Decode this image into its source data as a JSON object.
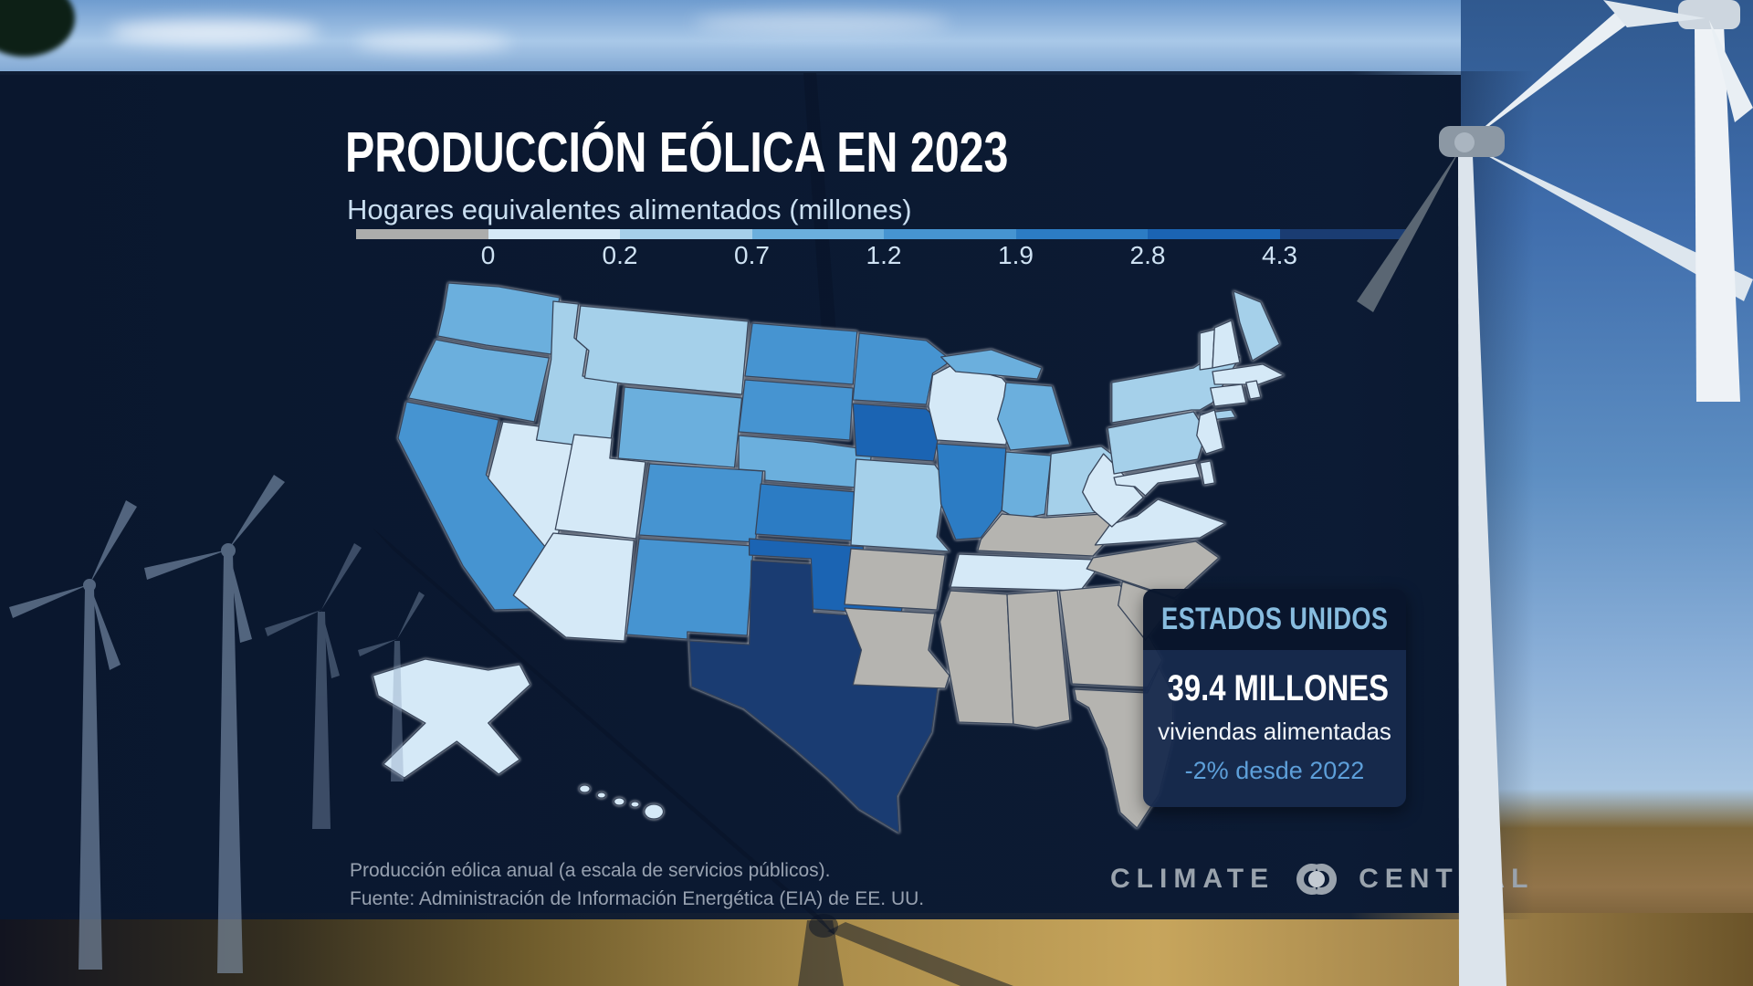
{
  "header": {
    "title": "PRODUCCIÓN EÓLICA EN 2023",
    "subtitle": "Hogares equivalentes alimentados (millones)"
  },
  "chart_data": {
    "type": "choropleth_map",
    "title": "PRODUCCIÓN EÓLICA EN 2023",
    "subtitle": "Hogares equivalentes alimentados (millones)",
    "unit": "millones de hogares equivalentes alimentados",
    "legend": {
      "tick_labels": [
        "0",
        "0.2",
        "0.7",
        "1.2",
        "1.9",
        "2.8",
        "4.3"
      ],
      "segment_colors": [
        "#acadac",
        "#d5e9f7",
        "#a5d0ea",
        "#6bafdd",
        "#4694d1",
        "#2c7cc4",
        "#1b64b3",
        "#1a3c72"
      ],
      "position": "top"
    },
    "no_data_color": "#b5b4b0",
    "state_fills": {
      "WA": "#6bafdd",
      "OR": "#6bafdd",
      "CA": "#4694d1",
      "NV": "#d5e9f7",
      "ID": "#a5d0ea",
      "MT": "#a5d0ea",
      "WY": "#6bafdd",
      "UT": "#d5e9f7",
      "CO": "#4694d1",
      "AZ": "#d5e9f7",
      "NM": "#4694d1",
      "ND": "#4694d1",
      "SD": "#4694d1",
      "NE": "#6bafdd",
      "KS": "#2c7cc4",
      "OK": "#1b64b3",
      "TX": "#1a3c72",
      "MN": "#4694d1",
      "IA": "#1b64b3",
      "MO": "#a5d0ea",
      "AR": "#b5b4b0",
      "LA": "#b5b4b0",
      "WI": "#d5e9f7",
      "IL": "#2c7cc4",
      "MI": "#6bafdd",
      "IN": "#6bafdd",
      "OH": "#a5d0ea",
      "KY": "#b5b4b0",
      "TN": "#d5e9f7",
      "MS": "#b5b4b0",
      "AL": "#b5b4b0",
      "GA": "#b5b4b0",
      "FL": "#b5b4b0",
      "SC": "#b5b4b0",
      "NC": "#b5b4b0",
      "VA": "#d5e9f7",
      "WV": "#d5e9f7",
      "PA": "#a5d0ea",
      "NY": "#a5d0ea",
      "NJ": "#d5e9f7",
      "MD": "#d5e9f7",
      "DE": "#d5e9f7",
      "VT": "#d5e9f7",
      "NH": "#d5e9f7",
      "MA": "#d5e9f7",
      "CT": "#d5e9f7",
      "RI": "#d5e9f7",
      "ME": "#a5d0ea",
      "AK": "#d5e9f7",
      "HI": "#d5e9f7"
    }
  },
  "callout": {
    "region": "ESTADOS UNIDOS",
    "value": "39.4 MILLONES",
    "value_label": "viviendas alimentadas",
    "change": "-2% desde 2022"
  },
  "footer": {
    "line1": "Producción eólica anual (a escala de servicios públicos).",
    "line2": "Fuente: Administración de Información Energética (EIA) de EE. UU."
  },
  "logo": {
    "left": "CLIMATE",
    "right": "CENTRAL"
  }
}
